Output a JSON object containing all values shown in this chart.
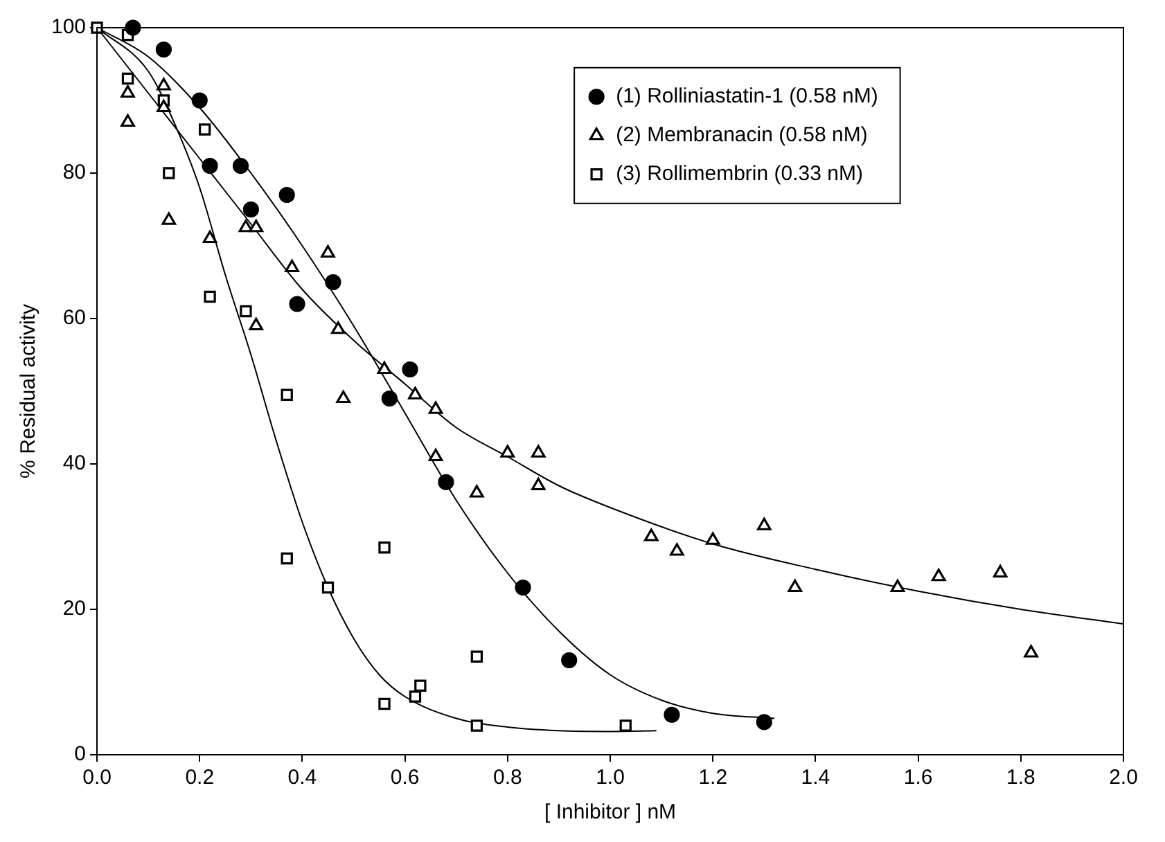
{
  "chart_data": {
    "type": "scatter",
    "xlabel": "[ Inhibitor ] nM",
    "ylabel": "% Residual activity",
    "xlim": [
      0,
      2
    ],
    "ylim": [
      0,
      100
    ],
    "xticks": [
      {
        "value": 0,
        "label": "0.0"
      },
      {
        "value": 0.2,
        "label": "0.2"
      },
      {
        "value": 0.4,
        "label": "0.4"
      },
      {
        "value": 0.6,
        "label": "0.6"
      },
      {
        "value": 0.8,
        "label": "0.8"
      },
      {
        "value": 1,
        "label": "1.0"
      },
      {
        "value": 1.2,
        "label": "1.2"
      },
      {
        "value": 1.4,
        "label": "1.4"
      },
      {
        "value": 1.6,
        "label": "1.6"
      },
      {
        "value": 1.8,
        "label": "1.8"
      },
      {
        "value": 2,
        "label": "2.0"
      }
    ],
    "yticks": [
      0,
      20,
      40,
      60,
      80,
      100
    ],
    "grid": false,
    "legend": "top right",
    "series": [
      {
        "name": "(1) Rolliniastatin-1 (0.58 nM)",
        "marker": "circle",
        "color": "#000000",
        "x": [
          0.07,
          0.13,
          0.2,
          0.22,
          0.28,
          0.3,
          0.37,
          0.39,
          0.46,
          0.57,
          0.61,
          0.68,
          0.83,
          0.92,
          1.12,
          1.3
        ],
        "values": [
          100,
          97,
          90,
          81,
          81,
          75,
          77,
          62,
          65,
          49,
          53,
          37.5,
          23,
          13,
          5.5,
          4.5
        ]
      },
      {
        "name": "(2) Membranacin (0.58 nM)",
        "marker": "triangle",
        "color": "#000000",
        "x": [
          0.06,
          0.06,
          0.13,
          0.13,
          0.14,
          0.22,
          0.29,
          0.31,
          0.31,
          0.38,
          0.45,
          0.47,
          0.48,
          0.56,
          0.62,
          0.66,
          0.66,
          0.74,
          0.8,
          0.86,
          0.86,
          1.08,
          1.13,
          1.2,
          1.3,
          1.36,
          1.56,
          1.64,
          1.76,
          1.82
        ],
        "values": [
          91,
          87,
          92,
          89,
          73.5,
          71,
          72.5,
          72.5,
          59,
          67,
          69,
          58.5,
          49,
          53,
          49.5,
          47.5,
          41,
          36,
          41.5,
          41.5,
          37,
          30,
          28,
          29.5,
          31.5,
          23,
          23,
          24.5,
          25,
          14
        ]
      },
      {
        "name": "(3) Rollimembrin (0.33 nM)",
        "marker": "square",
        "color": "#000000",
        "x": [
          0,
          0.06,
          0.06,
          0.13,
          0.14,
          0.21,
          0.22,
          0.29,
          0.37,
          0.37,
          0.45,
          0.56,
          0.56,
          0.62,
          0.63,
          0.74,
          0.74,
          1.03
        ],
        "values": [
          100,
          99,
          93,
          90,
          80,
          86,
          63,
          61,
          49.5,
          27,
          23,
          28.5,
          7,
          8,
          9.5,
          13.5,
          4,
          4
        ]
      },
      {
        "type": "line",
        "marker": "none",
        "color": "#000000",
        "x": [
          0,
          0.1,
          0.2,
          0.3,
          0.4,
          0.5,
          0.6,
          0.7,
          0.8,
          0.9,
          1.0,
          1.1,
          1.2,
          1.32
        ],
        "values": [
          100,
          96,
          89,
          80,
          70,
          59,
          47,
          35,
          25,
          17,
          11,
          7.5,
          5.7,
          5
        ]
      },
      {
        "type": "line",
        "marker": "none",
        "color": "#000000",
        "x": [
          0,
          0.1,
          0.2,
          0.3,
          0.4,
          0.5,
          0.6,
          0.7,
          0.8,
          0.9,
          1.0,
          1.2,
          1.4,
          1.6,
          1.8,
          2.0
        ],
        "values": [
          100,
          91,
          82,
          73,
          64,
          57,
          51,
          45,
          41,
          37,
          34,
          29,
          25.5,
          22.5,
          20,
          18
        ]
      },
      {
        "type": "line",
        "marker": "none",
        "color": "#000000",
        "x": [
          0,
          0.1,
          0.15,
          0.2,
          0.25,
          0.3,
          0.35,
          0.4,
          0.45,
          0.5,
          0.55,
          0.6,
          0.7,
          0.8,
          0.9,
          1.0,
          1.09
        ],
        "values": [
          100,
          94,
          87,
          78,
          66,
          55,
          43,
          32,
          23,
          16,
          11,
          8,
          5,
          3.8,
          3.3,
          3.2,
          3.3
        ]
      }
    ]
  }
}
